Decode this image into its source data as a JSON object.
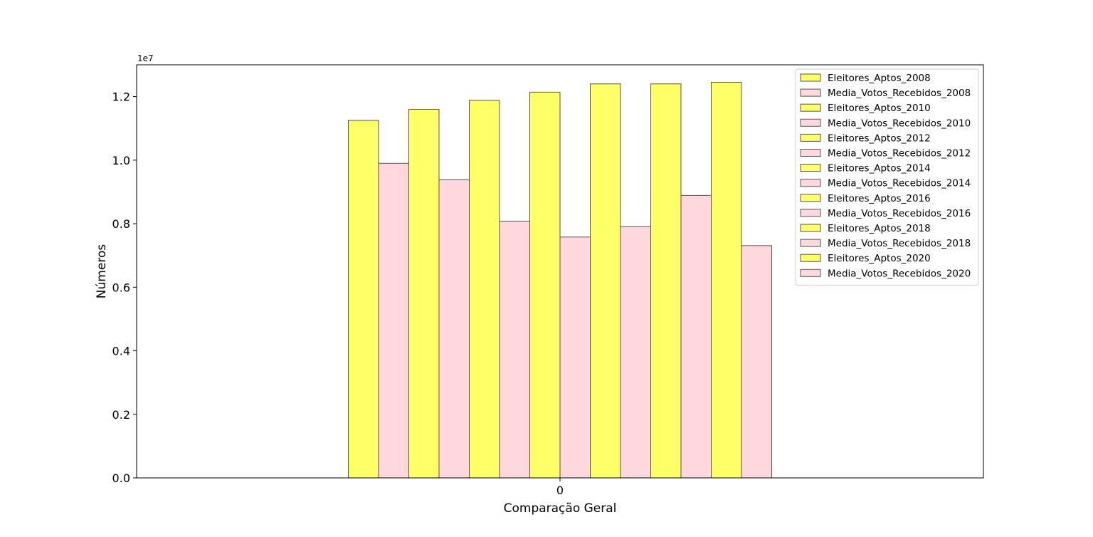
{
  "chart_data": {
    "type": "bar",
    "xlabel": "Comparação Geral",
    "ylabel": "Números",
    "offset_label": "1e7",
    "categories": [
      "0"
    ],
    "yticks": [
      "0.0",
      "0.2",
      "0.4",
      "0.6",
      "0.8",
      "1.0",
      "1.2"
    ],
    "ylim": [
      0,
      13000000
    ],
    "grid": false,
    "legend_position": "top-right",
    "colors": {
      "eleitores": "#ffff66",
      "media": "#ffd8de",
      "edge": "#555555"
    },
    "series": [
      {
        "name": "Eleitores_Aptos_2008",
        "values": [
          11250000
        ]
      },
      {
        "name": "Media_Votos_Recebidos_2008",
        "values": [
          9900000
        ]
      },
      {
        "name": "Eleitores_Aptos_2010",
        "values": [
          11600000
        ]
      },
      {
        "name": "Media_Votos_Recebidos_2010",
        "values": [
          9380000
        ]
      },
      {
        "name": "Eleitores_Aptos_2012",
        "values": [
          11880000
        ]
      },
      {
        "name": "Media_Votos_Recebidos_2012",
        "values": [
          8080000
        ]
      },
      {
        "name": "Eleitores_Aptos_2014",
        "values": [
          12140000
        ]
      },
      {
        "name": "Media_Votos_Recebidos_2014",
        "values": [
          7580000
        ]
      },
      {
        "name": "Eleitores_Aptos_2016",
        "values": [
          12400000
        ]
      },
      {
        "name": "Media_Votos_Recebidos_2016",
        "values": [
          7910000
        ]
      },
      {
        "name": "Eleitores_Aptos_2018",
        "values": [
          12400000
        ]
      },
      {
        "name": "Media_Votos_Recebidos_2018",
        "values": [
          8890000
        ]
      },
      {
        "name": "Eleitores_Aptos_2020",
        "values": [
          12450000
        ]
      },
      {
        "name": "Media_Votos_Recebidos_2020",
        "values": [
          7310000
        ]
      }
    ]
  }
}
